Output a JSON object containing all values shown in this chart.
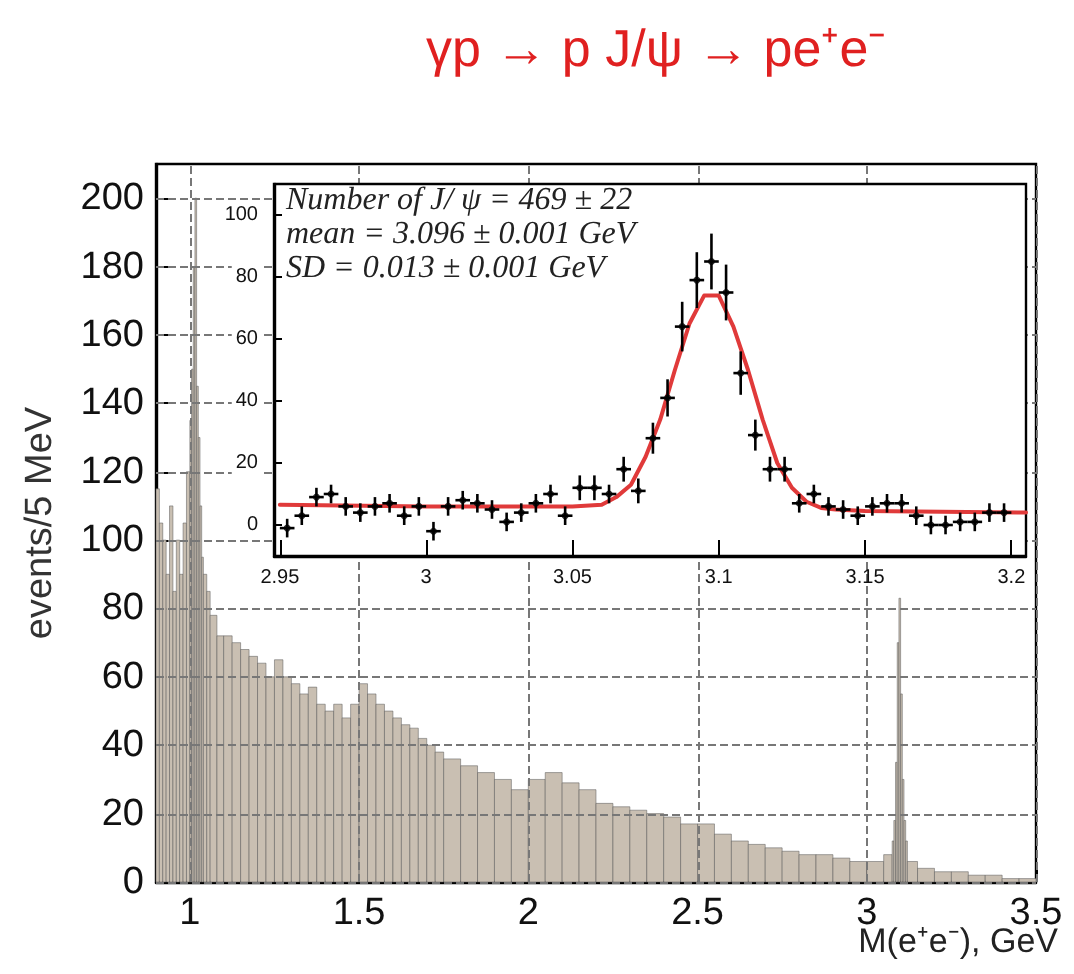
{
  "chart_data": [
    {
      "type": "histogram",
      "title": "γp → p J/ψ → pe⁺e⁻",
      "xlabel": "M(e⁺e⁻), GeV",
      "ylabel": "events/5 MeV",
      "color": "#c9bfb2",
      "bins": [
        0.9,
        0.91,
        0.92,
        0.93,
        0.94,
        0.95,
        0.96,
        0.97,
        0.98,
        0.99,
        1.0,
        1.005,
        1.01,
        1.015,
        1.02,
        1.025,
        1.03,
        1.035,
        1.04,
        1.05,
        1.06,
        1.08,
        1.1,
        1.125,
        1.15,
        1.175,
        1.2,
        1.225,
        1.25,
        1.275,
        1.3,
        1.325,
        1.35,
        1.375,
        1.4,
        1.425,
        1.45,
        1.475,
        1.5,
        1.525,
        1.55,
        1.575,
        1.6,
        1.625,
        1.65,
        1.675,
        1.7,
        1.725,
        1.75,
        1.8,
        1.85,
        1.9,
        1.95,
        2.0,
        2.05,
        2.1,
        2.15,
        2.2,
        2.25,
        2.3,
        2.35,
        2.4,
        2.45,
        2.5,
        2.55,
        2.6,
        2.65,
        2.7,
        2.75,
        2.8,
        2.85,
        2.9,
        2.95,
        3.0,
        3.05,
        3.075,
        3.08,
        3.085,
        3.09,
        3.095,
        3.1,
        3.105,
        3.11,
        3.115,
        3.12,
        3.15,
        3.2,
        3.25,
        3.3,
        3.35,
        3.4,
        3.45,
        3.5
      ],
      "values": [
        115,
        105,
        100,
        90,
        110,
        85,
        100,
        90,
        105,
        120,
        135,
        150,
        180,
        200,
        145,
        130,
        110,
        95,
        90,
        85,
        78,
        72,
        72,
        70,
        68,
        66,
        64,
        60,
        65,
        60,
        58,
        55,
        57,
        52,
        50,
        52,
        48,
        52,
        58,
        55,
        52,
        50,
        48,
        46,
        45,
        42,
        40,
        38,
        36,
        34,
        32,
        30,
        27,
        30,
        32,
        29,
        27,
        23,
        22,
        21,
        20,
        19,
        17,
        17,
        14,
        12,
        11,
        10,
        9,
        8,
        8,
        7,
        6,
        6,
        8,
        12,
        18,
        35,
        70,
        83,
        55,
        30,
        18,
        12,
        6,
        4,
        3,
        3,
        2,
        2,
        1,
        1
      ],
      "xlim": [
        0.9,
        3.5
      ],
      "xticks": [
        1,
        1.5,
        2,
        2.5,
        3,
        3.5
      ],
      "ylim": [
        0,
        210
      ],
      "yticks": [
        0,
        20,
        40,
        60,
        80,
        100,
        120,
        140,
        160,
        180,
        200
      ],
      "grid": true
    },
    {
      "type": "scatter",
      "line_style": "solid",
      "annotations": [
        "Number of J/ ψ = 469 ± 22",
        "mean = 3.096 ± 0.001 GeV",
        "SD = 0.013 ± 0.001 GeV"
      ],
      "xlim": [
        2.948,
        3.205
      ],
      "xticks": [
        2.95,
        3,
        3.05,
        3.1,
        3.15,
        3.2
      ],
      "ylim": [
        -10,
        110
      ],
      "yticks": [
        0,
        20,
        40,
        60,
        80,
        100
      ],
      "series": [
        {
          "type": "scatter",
          "marker": "circle",
          "color": "#000000",
          "x": [
            2.9525,
            2.9575,
            2.9625,
            2.9675,
            2.9725,
            2.9775,
            2.9825,
            2.9875,
            2.9925,
            2.9975,
            3.0025,
            3.0075,
            3.0125,
            3.0175,
            3.0225,
            3.0275,
            3.0325,
            3.0375,
            3.0425,
            3.0475,
            3.0525,
            3.0575,
            3.0625,
            3.0675,
            3.0725,
            3.0775,
            3.0825,
            3.0875,
            3.0925,
            3.0975,
            3.1025,
            3.1075,
            3.1125,
            3.1175,
            3.1225,
            3.1275,
            3.1325,
            3.1375,
            3.1425,
            3.1475,
            3.1525,
            3.1575,
            3.1625,
            3.1675,
            3.1725,
            3.1775,
            3.1825,
            3.1875,
            3.1925,
            3.1975
          ],
          "values": [
            -1,
            3,
            9,
            10,
            6,
            4,
            6,
            7,
            3,
            6,
            -2,
            6,
            8,
            7,
            5,
            1,
            4,
            7,
            10,
            3,
            12,
            12,
            10,
            18,
            11,
            28,
            41,
            64,
            79,
            85,
            75,
            49,
            29,
            18,
            18,
            7,
            10,
            6,
            5,
            3,
            6,
            7,
            7,
            3,
            0,
            0,
            1,
            1,
            4,
            4
          ],
          "errors": [
            3,
            3,
            3,
            3,
            3,
            3,
            3,
            3,
            3,
            3,
            3,
            3,
            3,
            3,
            3,
            3,
            3,
            3,
            3,
            3,
            4,
            4,
            3,
            4,
            4,
            5,
            6,
            8,
            9,
            9,
            9,
            7,
            5,
            4,
            4,
            3,
            3,
            3,
            3,
            3,
            3,
            3,
            3,
            3,
            3,
            3,
            3,
            3,
            3,
            3
          ],
          "xerrors": [
            0.0025,
            0.0025,
            0.0025,
            0.0025,
            0.0025,
            0.0025,
            0.0025,
            0.0025,
            0.0025,
            0.0025,
            0.0025,
            0.0025,
            0.0025,
            0.0025,
            0.0025,
            0.0025,
            0.0025,
            0.0025,
            0.0025,
            0.0025,
            0.0025,
            0.0025,
            0.0025,
            0.0025,
            0.0025,
            0.0025,
            0.0025,
            0.0025,
            0.0025,
            0.0025,
            0.0025,
            0.0025,
            0.0025,
            0.0025,
            0.0025,
            0.0025,
            0.0025,
            0.0025,
            0.0025,
            0.0025,
            0.0025,
            0.0025,
            0.0025,
            0.0025,
            0.0025,
            0.0025,
            0.0025,
            0.0025,
            0.0025,
            0.0025
          ]
        },
        {
          "type": "line",
          "marker": "none",
          "color": "#e03a3a",
          "x": [
            2.95,
            3.0,
            3.05,
            3.06,
            3.065,
            3.07,
            3.075,
            3.08,
            3.085,
            3.09,
            3.095,
            3.1,
            3.105,
            3.11,
            3.115,
            3.12,
            3.125,
            3.13,
            3.135,
            3.14,
            3.15,
            3.205
          ],
          "values": [
            6.5,
            6,
            6,
            6.5,
            9,
            13,
            22,
            34,
            50,
            65,
            74,
            74,
            64,
            50,
            34,
            20,
            12,
            7.5,
            5.5,
            5,
            4.5,
            4
          ]
        }
      ]
    }
  ]
}
